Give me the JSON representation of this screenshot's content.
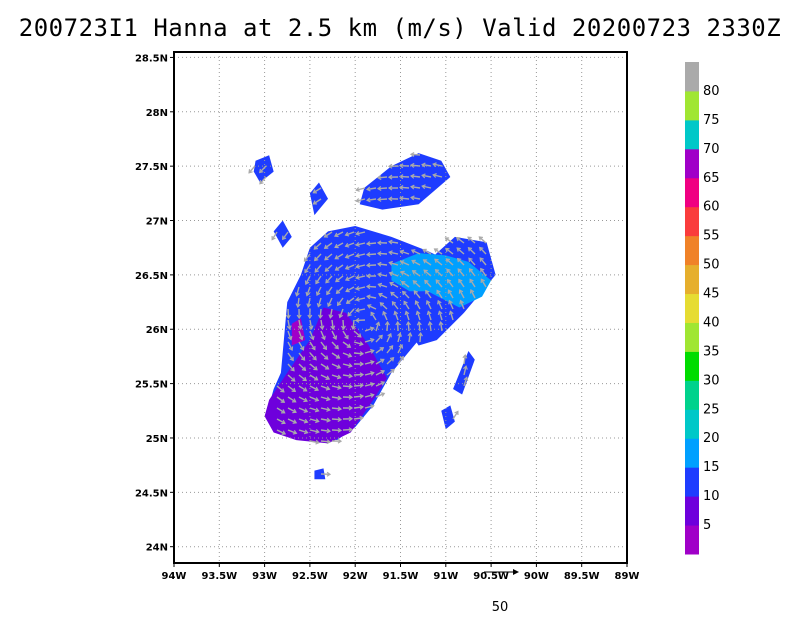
{
  "title": "200723I1 Hanna at 2.5 km (m/s) Valid 20200723 2330Z",
  "map": {
    "lon_range": [
      -94,
      -89
    ],
    "lat_range": [
      23.85,
      28.55
    ],
    "lon_ticks": [
      {
        "value": -94,
        "label": "94W"
      },
      {
        "value": -93.5,
        "label": "93.5W"
      },
      {
        "value": -93,
        "label": "93W"
      },
      {
        "value": -92.5,
        "label": "92.5W"
      },
      {
        "value": -92,
        "label": "92W"
      },
      {
        "value": -91.5,
        "label": "91.5W"
      },
      {
        "value": -91,
        "label": "91W"
      },
      {
        "value": -90.5,
        "label": "90.5W"
      },
      {
        "value": -90,
        "label": "90W"
      },
      {
        "value": -89.5,
        "label": "89.5W"
      },
      {
        "value": -89,
        "label": "89W"
      }
    ],
    "lat_ticks": [
      {
        "value": 24,
        "label": "24N"
      },
      {
        "value": 24.5,
        "label": "24.5N"
      },
      {
        "value": 25,
        "label": "25N"
      },
      {
        "value": 25.5,
        "label": "25.5N"
      },
      {
        "value": 26,
        "label": "26N"
      },
      {
        "value": 26.5,
        "label": "26.5N"
      },
      {
        "value": 27,
        "label": "27N"
      },
      {
        "value": 27.5,
        "label": "27.5N"
      },
      {
        "value": 28,
        "label": "28N"
      },
      {
        "value": 28.5,
        "label": "28.5N"
      }
    ],
    "grid": "dotted"
  },
  "colorbar": {
    "levels": [
      {
        "label": "5",
        "color": "#a000c8"
      },
      {
        "label": "10",
        "color": "#6e00dc"
      },
      {
        "label": "15",
        "color": "#1e3cff"
      },
      {
        "label": "20",
        "color": "#00a0ff"
      },
      {
        "label": "25",
        "color": "#00c8c8"
      },
      {
        "label": "30",
        "color": "#00d28c"
      },
      {
        "label": "35",
        "color": "#00dc00"
      },
      {
        "label": "40",
        "color": "#a0e632"
      },
      {
        "label": "45",
        "color": "#e6dc32"
      },
      {
        "label": "50",
        "color": "#e6af2d"
      },
      {
        "label": "55",
        "color": "#f08228"
      },
      {
        "label": "60",
        "color": "#fa3c3c"
      },
      {
        "label": "65",
        "color": "#f00082"
      },
      {
        "label": "70",
        "color": "#a000c8"
      },
      {
        "label": "75",
        "color": "#00c8c8"
      },
      {
        "label": "80",
        "color": "#a0e632"
      },
      {
        "label": "",
        "color": "#aaaaaa"
      }
    ]
  },
  "reference_vector": {
    "label": "50"
  },
  "wind_regions": [
    {
      "name": "main-blue",
      "color": "#1e3cff",
      "lonlat": [
        [
          -92.82,
          25.6
        ],
        [
          -92.75,
          26.25
        ],
        [
          -92.6,
          26.5
        ],
        [
          -92.5,
          26.75
        ],
        [
          -92.3,
          26.9
        ],
        [
          -92.0,
          26.95
        ],
        [
          -91.6,
          26.85
        ],
        [
          -91.2,
          26.72
        ],
        [
          -90.9,
          26.6
        ],
        [
          -91.0,
          26.4
        ],
        [
          -91.1,
          26.2
        ],
        [
          -91.2,
          26.0
        ],
        [
          -91.4,
          25.8
        ],
        [
          -91.6,
          25.6
        ],
        [
          -91.8,
          25.3
        ],
        [
          -92.0,
          25.1
        ],
        [
          -92.2,
          24.98
        ],
        [
          -92.5,
          25.05
        ],
        [
          -92.8,
          25.15
        ],
        [
          -92.95,
          25.3
        ],
        [
          -92.9,
          25.45
        ]
      ]
    },
    {
      "name": "east-blue",
      "color": "#1e3cff",
      "lonlat": [
        [
          -91.3,
          26.55
        ],
        [
          -90.9,
          26.85
        ],
        [
          -90.55,
          26.8
        ],
        [
          -90.45,
          26.5
        ],
        [
          -90.8,
          26.15
        ],
        [
          -91.1,
          25.9
        ],
        [
          -91.3,
          25.85
        ],
        [
          -91.5,
          26.1
        ]
      ]
    },
    {
      "name": "cyan-core",
      "color": "#00a0ff",
      "lonlat": [
        [
          -91.6,
          26.6
        ],
        [
          -91.3,
          26.7
        ],
        [
          -91.0,
          26.68
        ],
        [
          -90.75,
          26.62
        ],
        [
          -90.5,
          26.45
        ],
        [
          -90.6,
          26.3
        ],
        [
          -90.85,
          26.2
        ],
        [
          -91.2,
          26.35
        ],
        [
          -91.4,
          26.35
        ],
        [
          -91.6,
          26.45
        ]
      ]
    },
    {
      "name": "purple-south",
      "color": "#6e00dc",
      "lonlat": [
        [
          -92.95,
          25.35
        ],
        [
          -92.75,
          25.6
        ],
        [
          -92.5,
          25.9
        ],
        [
          -92.35,
          26.2
        ],
        [
          -92.1,
          26.15
        ],
        [
          -91.85,
          25.85
        ],
        [
          -91.65,
          25.55
        ],
        [
          -91.8,
          25.35
        ],
        [
          -92.05,
          25.05
        ],
        [
          -92.3,
          24.95
        ],
        [
          -92.65,
          24.98
        ],
        [
          -92.9,
          25.05
        ],
        [
          -93.0,
          25.2
        ]
      ]
    },
    {
      "name": "purple-west",
      "color": "#a000c8",
      "lonlat": [
        [
          -92.7,
          26.05
        ],
        [
          -92.6,
          26.1
        ],
        [
          -92.55,
          25.9
        ],
        [
          -92.7,
          25.85
        ]
      ]
    },
    {
      "name": "north-blue",
      "color": "#1e3cff",
      "lonlat": [
        [
          -91.9,
          27.3
        ],
        [
          -91.6,
          27.5
        ],
        [
          -91.3,
          27.62
        ],
        [
          -91.05,
          27.55
        ],
        [
          -90.95,
          27.4
        ],
        [
          -91.3,
          27.15
        ],
        [
          -91.7,
          27.1
        ],
        [
          -91.95,
          27.15
        ]
      ]
    },
    {
      "name": "east-spur",
      "color": "#1e3cff",
      "lonlat": [
        [
          -90.75,
          25.8
        ],
        [
          -90.68,
          25.72
        ],
        [
          -90.82,
          25.4
        ],
        [
          -90.92,
          25.45
        ]
      ]
    },
    {
      "name": "island-1",
      "color": "#1e3cff",
      "lonlat": [
        [
          -93.1,
          27.55
        ],
        [
          -92.95,
          27.6
        ],
        [
          -92.9,
          27.45
        ],
        [
          -93.05,
          27.35
        ],
        [
          -93.12,
          27.45
        ]
      ]
    },
    {
      "name": "island-2",
      "color": "#1e3cff",
      "lonlat": [
        [
          -92.5,
          27.25
        ],
        [
          -92.4,
          27.35
        ],
        [
          -92.3,
          27.2
        ],
        [
          -92.45,
          27.05
        ]
      ]
    },
    {
      "name": "island-3",
      "color": "#1e3cff",
      "lonlat": [
        [
          -92.9,
          26.9
        ],
        [
          -92.8,
          27.0
        ],
        [
          -92.7,
          26.85
        ],
        [
          -92.8,
          26.75
        ]
      ]
    },
    {
      "name": "island-4",
      "color": "#1e3cff",
      "lonlat": [
        [
          -91.05,
          25.25
        ],
        [
          -90.95,
          25.3
        ],
        [
          -90.9,
          25.15
        ],
        [
          -91.0,
          25.08
        ]
      ]
    },
    {
      "name": "island-5",
      "color": "#1e3cff",
      "lonlat": [
        [
          -92.45,
          24.7
        ],
        [
          -92.35,
          24.72
        ],
        [
          -92.33,
          24.62
        ],
        [
          -92.45,
          24.62
        ]
      ]
    }
  ]
}
